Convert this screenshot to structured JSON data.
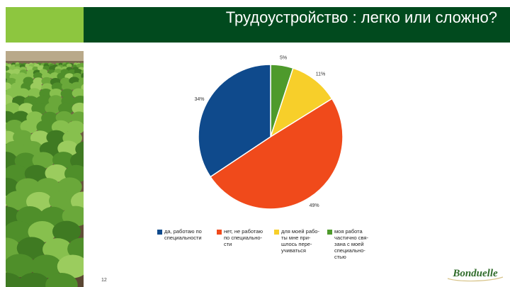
{
  "header": {
    "title": "Трудоустройство : легко или сложно?"
  },
  "colors": {
    "accent_green": "#8dc63f",
    "dark_green": "#014a1e",
    "logo_green": "#2f6b2a"
  },
  "chart_data": {
    "type": "pie",
    "title": "",
    "series": [
      {
        "label": "да, работаю по\nспециальности",
        "value": 34,
        "value_label": "34%",
        "color": "#0f4a8c"
      },
      {
        "label": "нет, не работаю\nпо специально-\nсти",
        "value": 49,
        "value_label": "49%",
        "color": "#f04a1b"
      },
      {
        "label": "для моей рабо-\nты мне при-\nшлось пере-\nучиваться",
        "value": 11,
        "value_label": "11%",
        "color": "#f7cf2a"
      },
      {
        "label": "моя работа\nчастично свя-\nзана с моей\nспециально-\nстью",
        "value": 5,
        "value_label": "5%",
        "color": "#4e9a2c"
      }
    ],
    "legend_position": "bottom"
  },
  "footer": {
    "page_number": "12",
    "logo_text": "Bonduelle"
  }
}
